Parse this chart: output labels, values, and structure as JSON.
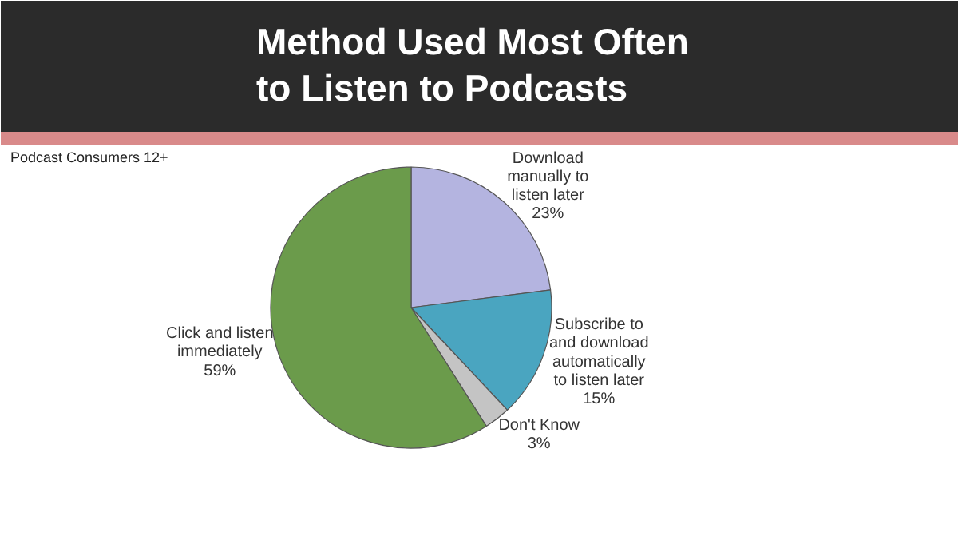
{
  "chart_data": {
    "type": "pie",
    "title": "Method Used Most Often\nto Listen to Podcasts",
    "subtitle": "Podcast Consumers 12+",
    "categories": [
      "Download\nmanually to\nlisten later",
      "Subscribe to\nand download\nautomatically\nto listen later",
      "Don't Know",
      "Click and listen\nimmediately"
    ],
    "values": [
      23,
      15,
      3,
      59
    ],
    "value_labels": [
      "23%",
      "15%",
      "3%",
      "59%"
    ],
    "colors": [
      "#b4b4e0",
      "#4aa5c0",
      "#c4c4c4",
      "#6b9b4b"
    ]
  }
}
